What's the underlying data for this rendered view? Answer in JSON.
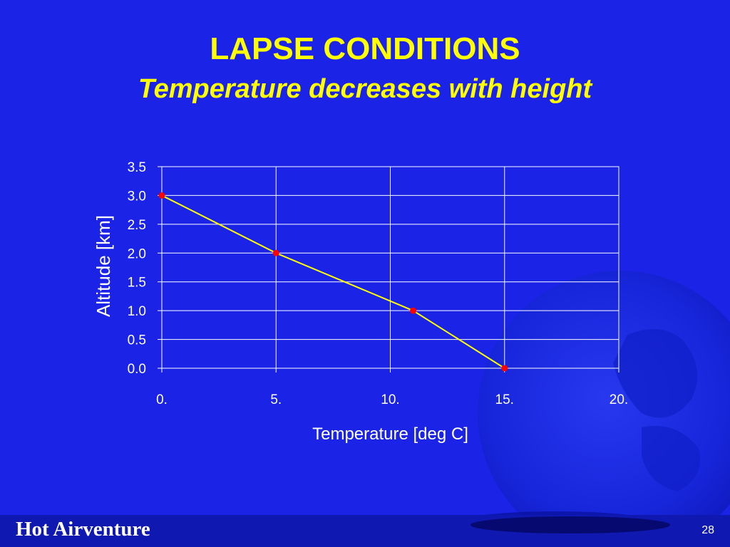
{
  "slide": {
    "title": "LAPSE CONDITIONS",
    "subtitle": "Temperature decreases with height",
    "footer": "Hot Airventure",
    "page_number": "28",
    "background_color": "#1a23e6",
    "title_color": "#ffff00"
  },
  "chart_data": {
    "type": "line",
    "title": "",
    "xlabel": "Temperature [deg C]",
    "ylabel": "Altitude [km]",
    "xlim": [
      0,
      20
    ],
    "ylim": [
      0,
      3.5
    ],
    "xticks": [
      0,
      5,
      10,
      15,
      20
    ],
    "xtick_labels": [
      "0.",
      "5.",
      "10.",
      "15.",
      "20."
    ],
    "yticks": [
      0,
      0.5,
      1.0,
      1.5,
      2.0,
      2.5,
      3.0,
      3.5
    ],
    "ytick_labels": [
      "0.0",
      "0.5",
      "1.0",
      "1.5",
      "2.0",
      "2.5",
      "3.0",
      "3.5"
    ],
    "grid": true,
    "series": [
      {
        "x": [
          0,
          5,
          11,
          15
        ],
        "y": [
          3,
          2,
          1,
          0
        ],
        "line_color": "#ffff00",
        "marker_color": "#ff0000"
      }
    ]
  }
}
